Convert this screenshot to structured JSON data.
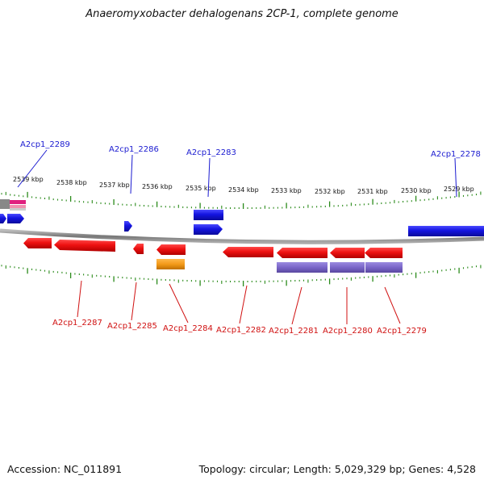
{
  "title": "Anaeromyxobacter dehalogenans 2CP-1, complete genome",
  "footer": {
    "accession": "Accession: NC_011891",
    "summary": "Topology: circular; Length: 5,029,329 bp; Genes: 4,528"
  },
  "scale_labels": [
    "2539 kbp",
    "2538 kbp",
    "2537 kbp",
    "2536 kbp",
    "2535 kbp",
    "2534 kbp",
    "2533 kbp",
    "2532 kbp",
    "2531 kbp",
    "2530 kbp",
    "2529 kbp"
  ],
  "labels_top": [
    "A2cp1_2289",
    "A2cp1_2286",
    "A2cp1_2283",
    "A2cp1_2278"
  ],
  "labels_bottom": [
    "A2cp1_2287",
    "A2cp1_2285",
    "A2cp1_2284",
    "A2cp1_2282",
    "A2cp1_2281",
    "A2cp1_2280",
    "A2cp1_2279"
  ],
  "colors": {
    "forward_gene": "#1a1ae6",
    "reverse_gene": "#ee1111",
    "orange_feature": "#f39a1a",
    "purple_feature": "#7a66c8",
    "magenta_feature": "#e0207f",
    "tick": "#2a8a1a",
    "backbone": "#888888",
    "label_forward": "#1a1ad0",
    "label_reverse": "#d01010"
  }
}
